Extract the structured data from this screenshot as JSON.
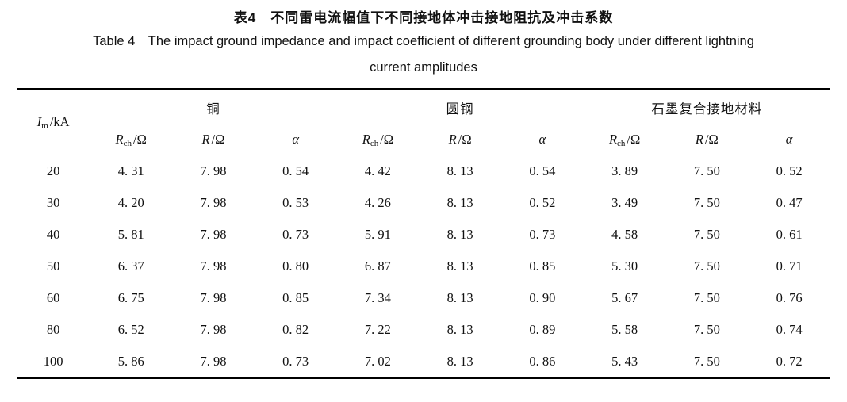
{
  "caption": {
    "cn": "表4　不同雷电流幅值下不同接地体冲击接地阻抗及冲击系数",
    "en_line1": "Table 4 The impact ground impedance and impact coefficient of different grounding body under different lightning",
    "en_line2": "current amplitudes"
  },
  "table": {
    "row_header": {
      "sym": "I",
      "sub": "m",
      "unit": "/kA"
    },
    "groups": [
      {
        "label": "铜"
      },
      {
        "label": "圆钢"
      },
      {
        "label": "石墨复合接地材料"
      }
    ],
    "subheader": {
      "rch": {
        "sym": "R",
        "sub": "ch",
        "unit": "/Ω"
      },
      "r": {
        "sym": "R",
        "unit": "/Ω"
      },
      "alpha": {
        "sym": "α"
      }
    },
    "rows": [
      {
        "im": "20",
        "values": [
          "4. 31",
          "7. 98",
          "0. 54",
          "4. 42",
          "8. 13",
          "0. 54",
          "3. 89",
          "7. 50",
          "0. 52"
        ]
      },
      {
        "im": "30",
        "values": [
          "4. 20",
          "7. 98",
          "0. 53",
          "4. 26",
          "8. 13",
          "0. 52",
          "3. 49",
          "7. 50",
          "0. 47"
        ]
      },
      {
        "im": "40",
        "values": [
          "5. 81",
          "7. 98",
          "0. 73",
          "5. 91",
          "8. 13",
          "0. 73",
          "4. 58",
          "7. 50",
          "0. 61"
        ]
      },
      {
        "im": "50",
        "values": [
          "6. 37",
          "7. 98",
          "0. 80",
          "6. 87",
          "8. 13",
          "0. 85",
          "5. 30",
          "7. 50",
          "0. 71"
        ]
      },
      {
        "im": "60",
        "values": [
          "6. 75",
          "7. 98",
          "0. 85",
          "7. 34",
          "8. 13",
          "0. 90",
          "5. 67",
          "7. 50",
          "0. 76"
        ]
      },
      {
        "im": "80",
        "values": [
          "6. 52",
          "7. 98",
          "0. 82",
          "7. 22",
          "8. 13",
          "0. 89",
          "5. 58",
          "7. 50",
          "0. 74"
        ]
      },
      {
        "im": "100",
        "values": [
          "5. 86",
          "7. 98",
          "0. 73",
          "7. 02",
          "8. 13",
          "0. 86",
          "5. 43",
          "7. 50",
          "0. 72"
        ]
      }
    ]
  }
}
